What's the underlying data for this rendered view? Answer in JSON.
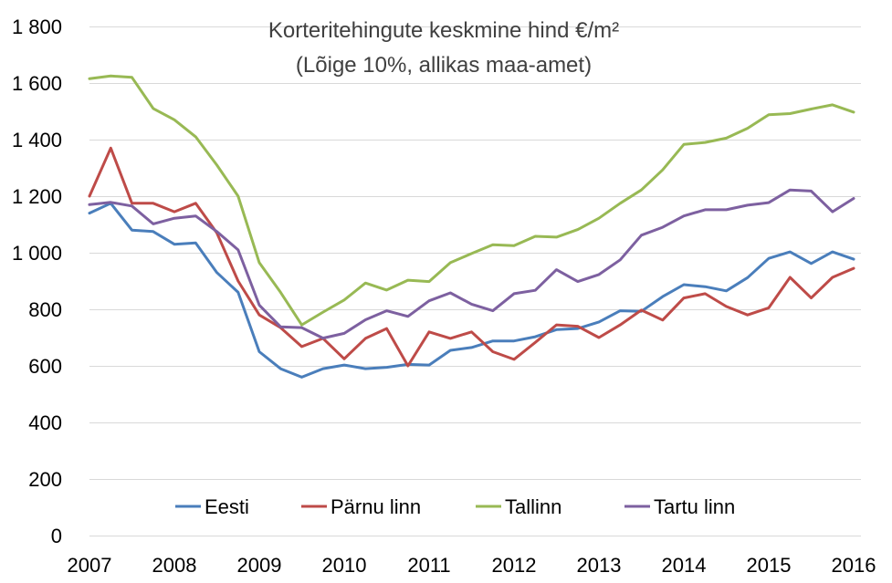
{
  "chart_data": {
    "type": "line",
    "title": "Korteritehingute keskmine hind €/m²",
    "subtitle": "(Lõige 10%, allikas maa-amet)",
    "xlabel": "",
    "ylabel": "",
    "ylim": [
      0,
      1800
    ],
    "xlim": [
      2007,
      2016
    ],
    "y_ticks": [
      0,
      200,
      400,
      600,
      800,
      1000,
      1200,
      1400,
      1600,
      1800
    ],
    "y_tick_labels": [
      "0",
      "200",
      "400",
      "600",
      "800",
      "1 000",
      "1 200",
      "1 400",
      "1 600",
      "1 800"
    ],
    "x_ticks": [
      2007,
      2008,
      2009,
      2010,
      2011,
      2012,
      2013,
      2014,
      2015,
      2016
    ],
    "x_tick_labels": [
      "2007",
      "2008",
      "2009",
      "2010",
      "2011",
      "2012",
      "2013",
      "2014",
      "2015",
      "2016"
    ],
    "grid": "horizontal",
    "legend_position": "bottom",
    "x": [
      2007.0,
      2007.25,
      2007.5,
      2007.75,
      2008.0,
      2008.25,
      2008.5,
      2008.75,
      2009.0,
      2009.25,
      2009.5,
      2009.75,
      2010.0,
      2010.25,
      2010.5,
      2010.75,
      2011.0,
      2011.25,
      2011.5,
      2011.75,
      2012.0,
      2012.25,
      2012.5,
      2012.75,
      2013.0,
      2013.25,
      2013.5,
      2013.75,
      2014.0,
      2014.25,
      2014.5,
      2014.75,
      2015.0,
      2015.25,
      2015.5,
      2015.75,
      2016.0
    ],
    "series": [
      {
        "name": "Eesti",
        "color": "#4a7ebb",
        "values": [
          1140,
          1175,
          1080,
          1075,
          1030,
          1035,
          930,
          860,
          650,
          590,
          560,
          590,
          603,
          590,
          595,
          605,
          603,
          655,
          665,
          688,
          688,
          703,
          728,
          732,
          755,
          795,
          793,
          845,
          887,
          880,
          865,
          912,
          980,
          1003,
          962,
          1003,
          977
        ]
      },
      {
        "name": "Pärnu linn",
        "color": "#be4b48",
        "values": [
          1200,
          1370,
          1175,
          1175,
          1145,
          1175,
          1070,
          900,
          780,
          735,
          668,
          697,
          625,
          697,
          732,
          600,
          720,
          697,
          720,
          650,
          623,
          683,
          745,
          740,
          700,
          745,
          797,
          762,
          840,
          855,
          810,
          780,
          805,
          913,
          840,
          913,
          945
        ]
      },
      {
        "name": "Tallinn",
        "color": "#98b954",
        "values": [
          1615,
          1625,
          1620,
          1510,
          1470,
          1410,
          1310,
          1200,
          965,
          860,
          745,
          790,
          833,
          893,
          868,
          903,
          898,
          965,
          997,
          1028,
          1025,
          1058,
          1055,
          1082,
          1122,
          1175,
          1222,
          1293,
          1383,
          1390,
          1405,
          1440,
          1488,
          1492,
          1508,
          1523,
          1497
        ]
      },
      {
        "name": "Tartu linn",
        "color": "#7d60a0",
        "values": [
          1170,
          1178,
          1165,
          1102,
          1122,
          1130,
          1075,
          1010,
          815,
          738,
          735,
          698,
          715,
          763,
          795,
          775,
          830,
          858,
          818,
          795,
          855,
          867,
          940,
          898,
          923,
          975,
          1062,
          1090,
          1130,
          1152,
          1152,
          1168,
          1177,
          1222,
          1218,
          1145,
          1192
        ]
      }
    ]
  }
}
